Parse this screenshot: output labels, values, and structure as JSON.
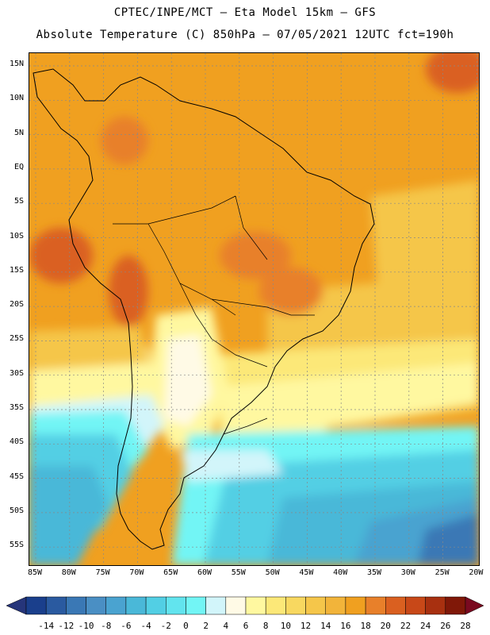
{
  "title_line1": "CPTEC/INPE/MCT –  Eta Model 15km – GFS",
  "title_line2": "Absolute Temperature (C) 850hPa – 07/05/2021 12UTC fct=190h",
  "map": {
    "region": "South America",
    "lat_labels": [
      "15N",
      "10N",
      "5N",
      "EQ",
      "5S",
      "10S",
      "15S",
      "20S",
      "25S",
      "30S",
      "35S",
      "40S",
      "45S",
      "50S",
      "55S"
    ],
    "lon_labels": [
      "85W",
      "80W",
      "75W",
      "70W",
      "65W",
      "60W",
      "55W",
      "50W",
      "45W",
      "40W",
      "35W",
      "30W",
      "25W",
      "20W"
    ],
    "gridlines": "dotted"
  },
  "colorbar": {
    "labels": [
      "-14",
      "-12",
      "-10",
      "-8",
      "-6",
      "-4",
      "-2",
      "0",
      "2",
      "4",
      "6",
      "8",
      "10",
      "12",
      "14",
      "16",
      "18",
      "20",
      "22",
      "24",
      "26",
      "28"
    ],
    "colors": [
      "#1a3f8c",
      "#2a5aa0",
      "#3a78b5",
      "#4a8fc4",
      "#4aa3d0",
      "#4ab8d8",
      "#52cfe4",
      "#62e4ee",
      "#72f5f5",
      "#d2f5fa",
      "#fffae6",
      "#fff8a0",
      "#fce878",
      "#f8d860",
      "#f5c64a",
      "#f2b43a",
      "#f0a020",
      "#e8802a",
      "#da6020",
      "#c84818",
      "#a83010",
      "#801808"
    ],
    "end_colors": {
      "low": "#26357a",
      "high": "#7a0a20"
    }
  }
}
